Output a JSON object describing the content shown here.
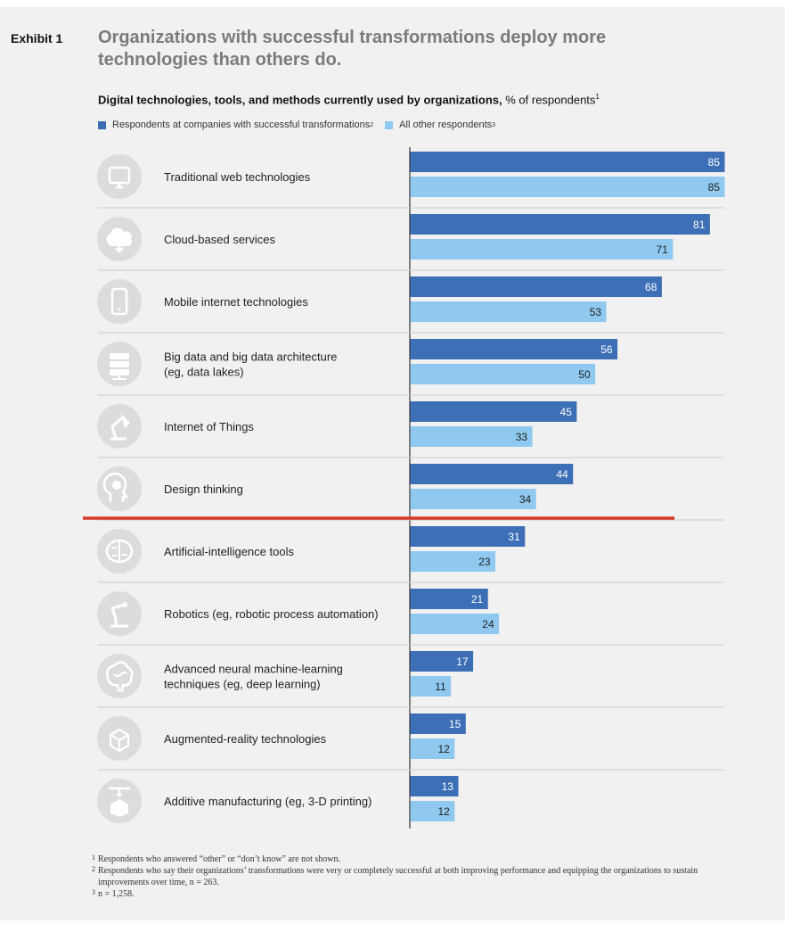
{
  "exhibit_label": "Exhibit 1",
  "title": "Organizations with successful transformations deploy more technologies than others do.",
  "subtitle": {
    "bold": "Digital technologies, tools, and methods currently used by organizations,",
    "rest": " % of respondents",
    "sup": "1"
  },
  "legend": [
    {
      "label": "Respondents at companies with successful transformations",
      "sup": "2",
      "color": "#3d6fb6"
    },
    {
      "label": "All other respondents",
      "sup": "3",
      "color": "#8fc9ef"
    }
  ],
  "colors": {
    "successful": "#3d6fb6",
    "others": "#8fc9ef",
    "divider": "#cccccc",
    "axis": "#333333",
    "highlight_line": "#d9392b",
    "icon_circle": "#dcdcdc",
    "icon_glyph": "#ffffff"
  },
  "chart_data": {
    "type": "bar",
    "orientation": "horizontal",
    "unit": "% of respondents",
    "xlim": [
      0,
      85
    ],
    "categories": [
      {
        "label": [
          "Traditional web technologies"
        ],
        "icon": "monitor-icon"
      },
      {
        "label": [
          "Cloud-based services"
        ],
        "icon": "cloud-icon"
      },
      {
        "label": [
          "Mobile internet technologies"
        ],
        "icon": "smartphone-icon"
      },
      {
        "label": [
          "Big data and big data architecture",
          "(eg, data lakes)"
        ],
        "icon": "server-icon"
      },
      {
        "label": [
          "Internet of Things"
        ],
        "icon": "desk-lamp-icon"
      },
      {
        "label": [
          "Design thinking"
        ],
        "icon": "lightbulb-head-icon"
      },
      {
        "label": [
          "Artificial-intelligence tools"
        ],
        "icon": "brain-circuit-icon"
      },
      {
        "label": [
          "Robotics (eg, robotic process automation)"
        ],
        "icon": "robot-arm-icon"
      },
      {
        "label": [
          "Advanced neural machine-learning",
          "techniques (eg, deep learning)"
        ],
        "icon": "brain-icon"
      },
      {
        "label": [
          "Augmented-reality technologies"
        ],
        "icon": "ar-cube-icon"
      },
      {
        "label": [
          "Additive manufacturing (eg, 3-D printing)"
        ],
        "icon": "3d-printer-icon"
      }
    ],
    "series": [
      {
        "name": "Respondents at companies with successful transformations",
        "values": [
          85,
          81,
          68,
          56,
          45,
          44,
          31,
          21,
          17,
          15,
          13
        ]
      },
      {
        "name": "All other respondents",
        "values": [
          85,
          71,
          53,
          50,
          33,
          34,
          23,
          24,
          11,
          12,
          12
        ]
      }
    ],
    "highlight_after_category": "Design thinking"
  },
  "footnotes": [
    {
      "mark": "1",
      "text": "Respondents who answered “other” or “don’t know” are not shown."
    },
    {
      "mark": "2",
      "text": "Respondents who say their organizations’ transformations were very or completely successful at both improving performance and equipping the organizations to sustain improvements over time, n = 263."
    },
    {
      "mark": "3",
      "text": "n = 1,258."
    }
  ]
}
